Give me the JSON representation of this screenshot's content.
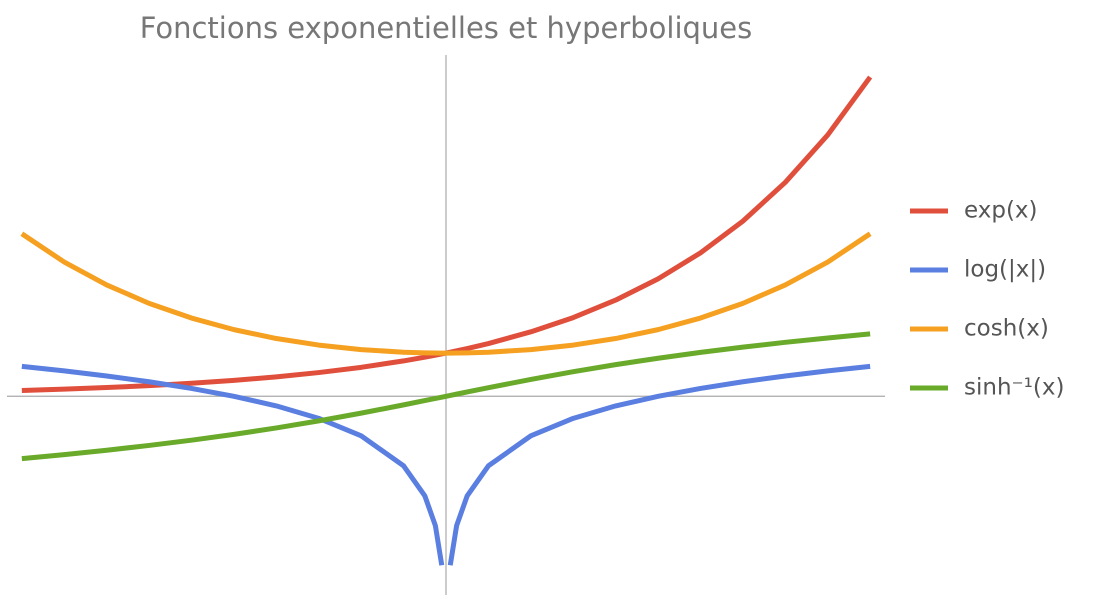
{
  "chart_data": {
    "type": "line",
    "title": "Fonctions exponentielles et hyperboliques",
    "x": [
      -2,
      -1.8,
      -1.6,
      -1.4,
      -1.2,
      -1,
      -0.8,
      -0.6,
      -0.4,
      -0.2,
      -0.1,
      -0.05,
      -0.02,
      0,
      0.02,
      0.05,
      0.1,
      0.2,
      0.4,
      0.6,
      0.8,
      1,
      1.2,
      1.4,
      1.6,
      1.8,
      2
    ],
    "xlim": [
      -2.07,
      2.07
    ],
    "ylim": [
      -4.6,
      7.9
    ],
    "series": [
      {
        "name": "exp(x)",
        "color": "#e04f3c",
        "values": [
          0.135,
          0.165,
          0.202,
          0.247,
          0.301,
          0.368,
          0.449,
          0.549,
          0.67,
          0.819,
          0.905,
          0.951,
          0.98,
          1,
          1.02,
          1.051,
          1.105,
          1.221,
          1.492,
          1.822,
          2.226,
          2.718,
          3.32,
          4.055,
          4.953,
          6.05,
          7.389
        ]
      },
      {
        "name": "log(|x|)",
        "color": "#5a7fe0",
        "values": [
          0.693,
          0.588,
          0.47,
          0.336,
          0.182,
          0,
          -0.223,
          -0.511,
          -0.916,
          -1.609,
          -2.303,
          -2.996,
          -3.912,
          null,
          -3.912,
          -2.996,
          -2.303,
          -1.609,
          -0.916,
          -0.511,
          -0.223,
          0,
          0.182,
          0.336,
          0.47,
          0.588,
          0.693
        ]
      },
      {
        "name": "cosh(x)",
        "color": "#f5a020",
        "values": [
          3.762,
          3.107,
          2.577,
          2.151,
          1.811,
          1.543,
          1.337,
          1.185,
          1.081,
          1.02,
          1.005,
          1.001,
          1.0,
          1,
          1.0,
          1.001,
          1.005,
          1.02,
          1.081,
          1.185,
          1.337,
          1.543,
          1.811,
          2.151,
          2.577,
          3.107,
          3.762
        ]
      },
      {
        "name": "sinh⁻¹(x)",
        "color": "#6aaa2a",
        "values": [
          -1.444,
          -1.35,
          -1.249,
          -1.138,
          -1.016,
          -0.881,
          -0.733,
          -0.569,
          -0.39,
          -0.199,
          -0.1,
          -0.05,
          -0.02,
          0,
          0.02,
          0.05,
          0.1,
          0.199,
          0.39,
          0.569,
          0.733,
          0.881,
          1.016,
          1.138,
          1.249,
          1.35,
          1.444
        ]
      }
    ]
  }
}
